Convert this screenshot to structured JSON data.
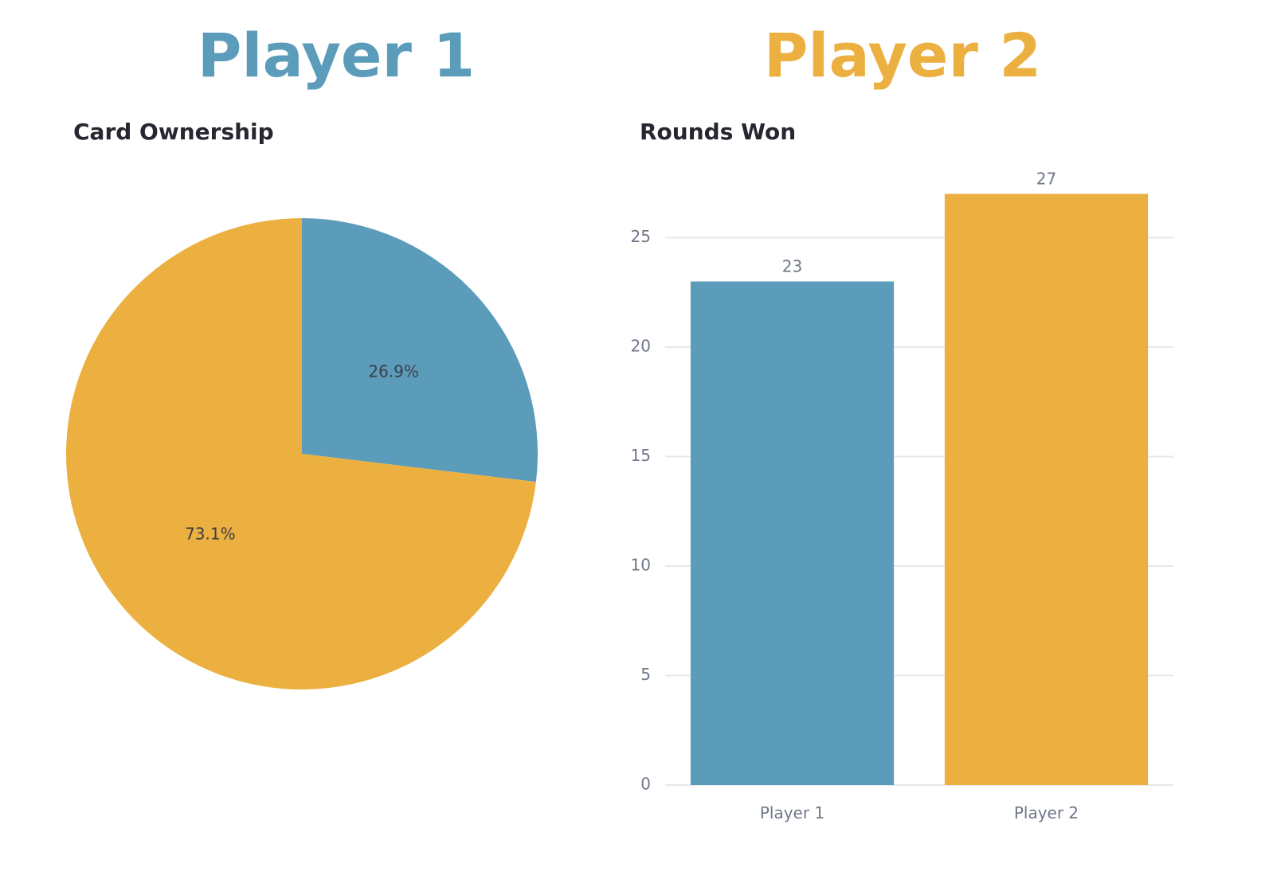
{
  "headings": {
    "player1": "Player 1",
    "player2": "Player 2"
  },
  "colors": {
    "player1": "#5b9cba",
    "player2": "#ebb040",
    "title_text": "#262730",
    "axis_text": "#707789",
    "grid": "#e6e8ec",
    "pie_label": "#3d3d44"
  },
  "chart_data": [
    {
      "type": "pie",
      "title": "Card Ownership",
      "slices": [
        {
          "name": "Player 1",
          "value": 26.9,
          "label": "26.9%",
          "color": "#5b9cba"
        },
        {
          "name": "Player 2",
          "value": 73.1,
          "label": "73.1%",
          "color": "#ebb040"
        }
      ],
      "start": "12 o'clock",
      "direction": "clockwise",
      "legend": "none"
    },
    {
      "type": "bar",
      "title": "Rounds Won",
      "categories": [
        "Player 1",
        "Player 2"
      ],
      "values": [
        23,
        27
      ],
      "value_labels": [
        "23",
        "27"
      ],
      "colors": [
        "#5b9cba",
        "#ebb040"
      ],
      "xlabel": "",
      "ylabel": "",
      "ylim": [
        0,
        27
      ],
      "yticks": [
        0,
        5,
        10,
        15,
        20,
        25
      ],
      "grid": "horizontal",
      "legend": "none"
    }
  ]
}
